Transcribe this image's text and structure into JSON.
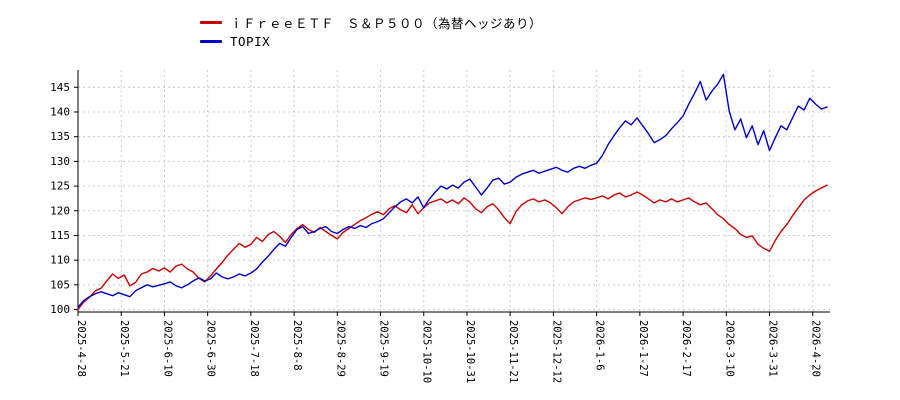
{
  "chart_data": {
    "type": "line",
    "title": "",
    "grid": true,
    "legend_position": "top-center",
    "axis_color": "#000000",
    "grid_color": "#cccccc",
    "background": "#ffffff",
    "x_axis": {
      "range": [
        0,
        261
      ],
      "tick_positions": [
        0,
        15,
        30,
        45,
        60,
        75,
        90,
        105,
        120,
        135,
        150,
        165,
        180,
        195,
        210,
        225,
        240,
        255
      ],
      "tick_labels": [
        "2025-4-28",
        "2025-5-21",
        "2025-6-10",
        "2025-6-30",
        "2025-7-18",
        "2025-8-8",
        "2025-8-29",
        "2025-9-19",
        "2025-10-10",
        "2025-10-31",
        "2025-11-21",
        "2025-12-12",
        "2026-1-6",
        "2026-1-27",
        "2026-2-17",
        "2026-3-10",
        "2026-3-31",
        "2026-4-20"
      ]
    },
    "y_axis": {
      "range": [
        99.5,
        148.5
      ],
      "ticks": [
        100,
        105,
        110,
        115,
        120,
        125,
        130,
        135,
        140,
        145
      ]
    },
    "series": [
      {
        "name": "ｉＦｒｅｅＥＴＦ　Ｓ＆Ｐ５００（為替ヘッジあり）",
        "color": "#cc0000",
        "points": [
          [
            0,
            100
          ],
          [
            2,
            101.5
          ],
          [
            4,
            102.5
          ],
          [
            6,
            103.8
          ],
          [
            8,
            104.3
          ],
          [
            10,
            105.8
          ],
          [
            12,
            107.2
          ],
          [
            14,
            106.3
          ],
          [
            16,
            107
          ],
          [
            18,
            104.8
          ],
          [
            20,
            105.5
          ],
          [
            22,
            107.2
          ],
          [
            24,
            107.6
          ],
          [
            26,
            108.3
          ],
          [
            28,
            107.8
          ],
          [
            30,
            108.4
          ],
          [
            32,
            107.6
          ],
          [
            34,
            108.8
          ],
          [
            36,
            109.2
          ],
          [
            38,
            108.2
          ],
          [
            40,
            107.6
          ],
          [
            42,
            106.3
          ],
          [
            44,
            105.6
          ],
          [
            46,
            106.8
          ],
          [
            48,
            108.2
          ],
          [
            50,
            109.5
          ],
          [
            52,
            111
          ],
          [
            54,
            112.2
          ],
          [
            56,
            113.4
          ],
          [
            58,
            112.6
          ],
          [
            60,
            113.2
          ],
          [
            62,
            114.6
          ],
          [
            64,
            113.8
          ],
          [
            66,
            115.2
          ],
          [
            68,
            115.8
          ],
          [
            70,
            114.8
          ],
          [
            72,
            113.6
          ],
          [
            74,
            115.2
          ],
          [
            76,
            116.4
          ],
          [
            78,
            117.2
          ],
          [
            80,
            116.2
          ],
          [
            82,
            115.6
          ],
          [
            84,
            116.6
          ],
          [
            86,
            115.8
          ],
          [
            88,
            115
          ],
          [
            90,
            114.3
          ],
          [
            92,
            115.6
          ],
          [
            94,
            116.4
          ],
          [
            96,
            117.2
          ],
          [
            98,
            118
          ],
          [
            100,
            118.6
          ],
          [
            102,
            119.3
          ],
          [
            104,
            119.8
          ],
          [
            106,
            119.2
          ],
          [
            108,
            120.4
          ],
          [
            110,
            121
          ],
          [
            112,
            120.2
          ],
          [
            114,
            119.6
          ],
          [
            116,
            121.2
          ],
          [
            118,
            119.4
          ],
          [
            120,
            120.6
          ],
          [
            122,
            121.6
          ],
          [
            124,
            122
          ],
          [
            126,
            122.4
          ],
          [
            128,
            121.6
          ],
          [
            130,
            122.2
          ],
          [
            132,
            121.4
          ],
          [
            134,
            122.6
          ],
          [
            136,
            121.8
          ],
          [
            138,
            120.4
          ],
          [
            140,
            119.6
          ],
          [
            142,
            120.8
          ],
          [
            144,
            121.4
          ],
          [
            146,
            120.2
          ],
          [
            148,
            118.6
          ],
          [
            150,
            117.4
          ],
          [
            152,
            119.8
          ],
          [
            154,
            121.2
          ],
          [
            156,
            122
          ],
          [
            158,
            122.4
          ],
          [
            160,
            121.8
          ],
          [
            162,
            122.2
          ],
          [
            164,
            121.6
          ],
          [
            166,
            120.6
          ],
          [
            168,
            119.4
          ],
          [
            170,
            120.8
          ],
          [
            172,
            121.8
          ],
          [
            174,
            122.2
          ],
          [
            176,
            122.6
          ],
          [
            178,
            122.3
          ],
          [
            180,
            122.6
          ],
          [
            182,
            123
          ],
          [
            184,
            122.4
          ],
          [
            186,
            123.2
          ],
          [
            188,
            123.6
          ],
          [
            190,
            122.8
          ],
          [
            192,
            123.2
          ],
          [
            194,
            123.8
          ],
          [
            196,
            123.2
          ],
          [
            198,
            122.4
          ],
          [
            200,
            121.6
          ],
          [
            202,
            122.2
          ],
          [
            204,
            121.8
          ],
          [
            206,
            122.4
          ],
          [
            208,
            121.8
          ],
          [
            210,
            122.2
          ],
          [
            212,
            122.6
          ],
          [
            214,
            121.8
          ],
          [
            216,
            121.2
          ],
          [
            218,
            121.6
          ],
          [
            220,
            120.4
          ],
          [
            222,
            119.2
          ],
          [
            224,
            118.4
          ],
          [
            226,
            117.2
          ],
          [
            228,
            116.4
          ],
          [
            230,
            115.2
          ],
          [
            232,
            114.6
          ],
          [
            234,
            114.9
          ],
          [
            236,
            113.2
          ],
          [
            238,
            112.4
          ],
          [
            240,
            111.8
          ],
          [
            242,
            114
          ],
          [
            244,
            115.8
          ],
          [
            246,
            117.2
          ],
          [
            248,
            119
          ],
          [
            250,
            120.6
          ],
          [
            252,
            122.2
          ],
          [
            254,
            123.2
          ],
          [
            256,
            124
          ],
          [
            258,
            124.6
          ],
          [
            260,
            125.2
          ]
        ]
      },
      {
        "name": "TOPIX",
        "color": "#0000cc",
        "points": [
          [
            0,
            100.5
          ],
          [
            2,
            101.8
          ],
          [
            4,
            102.6
          ],
          [
            6,
            103.2
          ],
          [
            8,
            103.6
          ],
          [
            10,
            103.2
          ],
          [
            12,
            102.8
          ],
          [
            14,
            103.4
          ],
          [
            16,
            103
          ],
          [
            18,
            102.6
          ],
          [
            20,
            103.8
          ],
          [
            22,
            104.4
          ],
          [
            24,
            105
          ],
          [
            26,
            104.6
          ],
          [
            28,
            104.9
          ],
          [
            30,
            105.2
          ],
          [
            32,
            105.6
          ],
          [
            34,
            104.8
          ],
          [
            36,
            104.4
          ],
          [
            38,
            105
          ],
          [
            40,
            105.8
          ],
          [
            42,
            106.4
          ],
          [
            44,
            105.8
          ],
          [
            46,
            106.2
          ],
          [
            48,
            107.4
          ],
          [
            50,
            106.6
          ],
          [
            52,
            106.2
          ],
          [
            54,
            106.6
          ],
          [
            56,
            107.2
          ],
          [
            58,
            106.8
          ],
          [
            60,
            107.4
          ],
          [
            62,
            108.2
          ],
          [
            64,
            109.6
          ],
          [
            66,
            110.8
          ],
          [
            68,
            112.2
          ],
          [
            70,
            113.4
          ],
          [
            72,
            112.8
          ],
          [
            74,
            114.6
          ],
          [
            76,
            116.2
          ],
          [
            78,
            116.8
          ],
          [
            80,
            115.4
          ],
          [
            82,
            115.8
          ],
          [
            84,
            116.4
          ],
          [
            86,
            116.8
          ],
          [
            88,
            115.8
          ],
          [
            90,
            115.4
          ],
          [
            92,
            116.2
          ],
          [
            94,
            116.8
          ],
          [
            96,
            116.4
          ],
          [
            98,
            117
          ],
          [
            100,
            116.6
          ],
          [
            102,
            117.4
          ],
          [
            104,
            117.8
          ],
          [
            106,
            118.4
          ],
          [
            108,
            119.6
          ],
          [
            110,
            120.8
          ],
          [
            112,
            121.8
          ],
          [
            114,
            122.4
          ],
          [
            116,
            121.6
          ],
          [
            118,
            122.8
          ],
          [
            120,
            120.6
          ],
          [
            122,
            122.4
          ],
          [
            124,
            123.8
          ],
          [
            126,
            125
          ],
          [
            128,
            124.4
          ],
          [
            130,
            125.2
          ],
          [
            132,
            124.6
          ],
          [
            134,
            125.8
          ],
          [
            136,
            126.4
          ],
          [
            138,
            124.8
          ],
          [
            140,
            123.2
          ],
          [
            142,
            124.6
          ],
          [
            144,
            126.2
          ],
          [
            146,
            126.6
          ],
          [
            148,
            125.4
          ],
          [
            150,
            125.8
          ],
          [
            152,
            126.8
          ],
          [
            154,
            127.4
          ],
          [
            156,
            127.8
          ],
          [
            158,
            128.2
          ],
          [
            160,
            127.6
          ],
          [
            162,
            128
          ],
          [
            164,
            128.4
          ],
          [
            166,
            128.8
          ],
          [
            168,
            128.2
          ],
          [
            170,
            127.8
          ],
          [
            172,
            128.6
          ],
          [
            174,
            129
          ],
          [
            176,
            128.6
          ],
          [
            178,
            129.2
          ],
          [
            180,
            129.6
          ],
          [
            182,
            131.2
          ],
          [
            184,
            133.4
          ],
          [
            186,
            135.2
          ],
          [
            188,
            136.8
          ],
          [
            190,
            138.2
          ],
          [
            192,
            137.4
          ],
          [
            194,
            138.8
          ],
          [
            196,
            137.2
          ],
          [
            198,
            135.6
          ],
          [
            200,
            133.8
          ],
          [
            202,
            134.4
          ],
          [
            204,
            135.2
          ],
          [
            206,
            136.6
          ],
          [
            208,
            137.8
          ],
          [
            210,
            139.2
          ],
          [
            212,
            141.6
          ],
          [
            214,
            143.8
          ],
          [
            216,
            146.2
          ],
          [
            218,
            142.4
          ],
          [
            220,
            144.2
          ],
          [
            222,
            145.6
          ],
          [
            224,
            147.6
          ],
          [
            226,
            140.2
          ],
          [
            228,
            136.4
          ],
          [
            230,
            138.6
          ],
          [
            232,
            134.8
          ],
          [
            234,
            137.2
          ],
          [
            236,
            133.4
          ],
          [
            238,
            136.2
          ],
          [
            240,
            132.2
          ],
          [
            242,
            134.8
          ],
          [
            244,
            137.2
          ],
          [
            246,
            136.4
          ],
          [
            248,
            138.8
          ],
          [
            250,
            141.2
          ],
          [
            252,
            140.4
          ],
          [
            254,
            142.8
          ],
          [
            256,
            141.6
          ],
          [
            258,
            140.6
          ],
          [
            260,
            141
          ]
        ]
      }
    ]
  }
}
